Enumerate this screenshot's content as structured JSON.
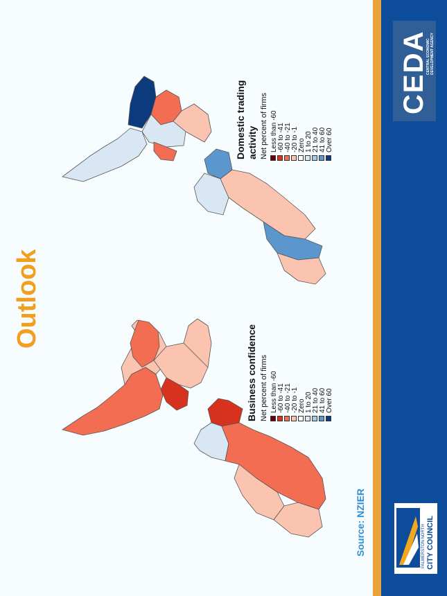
{
  "slide": {
    "title": "Outlook",
    "source": "Source: NZIER"
  },
  "maps": [
    {
      "title": "Business confidence",
      "subtitle": "Net percent of firms"
    },
    {
      "title": "Domestic trading",
      "title_line2": "activity",
      "subtitle": "Net percent of firms"
    }
  ],
  "legend": {
    "items": [
      {
        "label": "Less than -60",
        "color": "#67000d"
      },
      {
        "label": "-60 to -41",
        "color": "#d6321e"
      },
      {
        "label": "-40 to -21",
        "color": "#f26d52"
      },
      {
        "label": "-20 to -1",
        "color": "#fbc4b0"
      },
      {
        "label": "Zero",
        "color": "#ffffff"
      },
      {
        "label": "1 to 20",
        "color": "#d9e7f5"
      },
      {
        "label": "21 to 40",
        "color": "#a8c9e6"
      },
      {
        "label": "41 to 60",
        "color": "#5b96cc"
      },
      {
        "label": "Over 60",
        "color": "#0b3b7c"
      }
    ]
  },
  "branding": {
    "ceda": "CEDA",
    "ceda_sub_1": "CENTRAL ECONOMIC",
    "ceda_sub_2": "DEVELOPMENT AGENCY",
    "council_top": "PALMERSTON NORTH",
    "council_main": "CITY COUNCIL"
  },
  "colors": {
    "accent_orange": "#f29e1f",
    "sidebar_blue": "#0d4c9a",
    "source_blue": "#2f8fd6"
  }
}
